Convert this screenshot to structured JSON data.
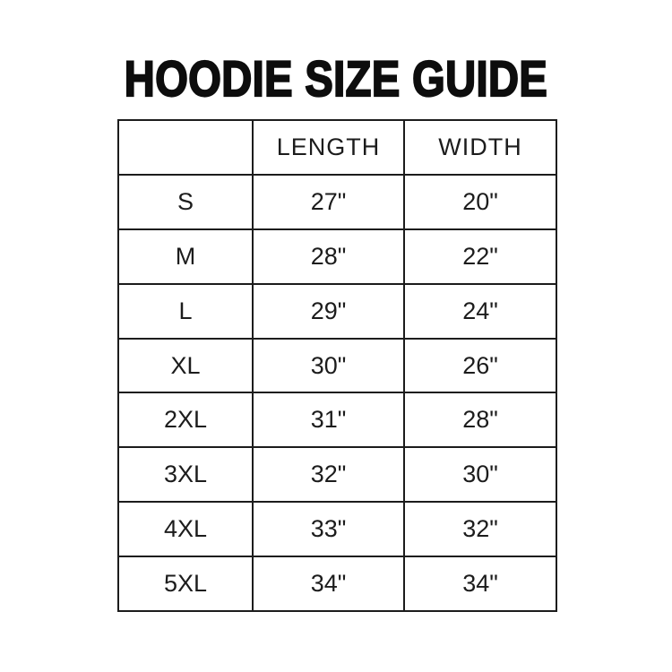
{
  "chart_data": {
    "type": "table",
    "title": "HOODIE SIZE GUIDE",
    "headers": [
      "",
      "LENGTH",
      "WIDTH"
    ],
    "rows": [
      [
        "S",
        "27\"",
        "20\""
      ],
      [
        "M",
        "28\"",
        "22\""
      ],
      [
        "L",
        "29\"",
        "24\""
      ],
      [
        "XL",
        "30\"",
        "26\""
      ],
      [
        "2XL",
        "31\"",
        "28\""
      ],
      [
        "3XL",
        "32\"",
        "30\""
      ],
      [
        "4XL",
        "33\"",
        "32\""
      ],
      [
        "5XL",
        "34\"",
        "34\""
      ]
    ],
    "layout_hints": {
      "grid": "all-borders",
      "header_row": true,
      "first_column_is_size_label": true
    }
  },
  "colors": {
    "background": "#ffffff",
    "title_text": "#0d0d0d",
    "table_text": "#1c1c1c",
    "table_border": "#1c1c1c"
  }
}
